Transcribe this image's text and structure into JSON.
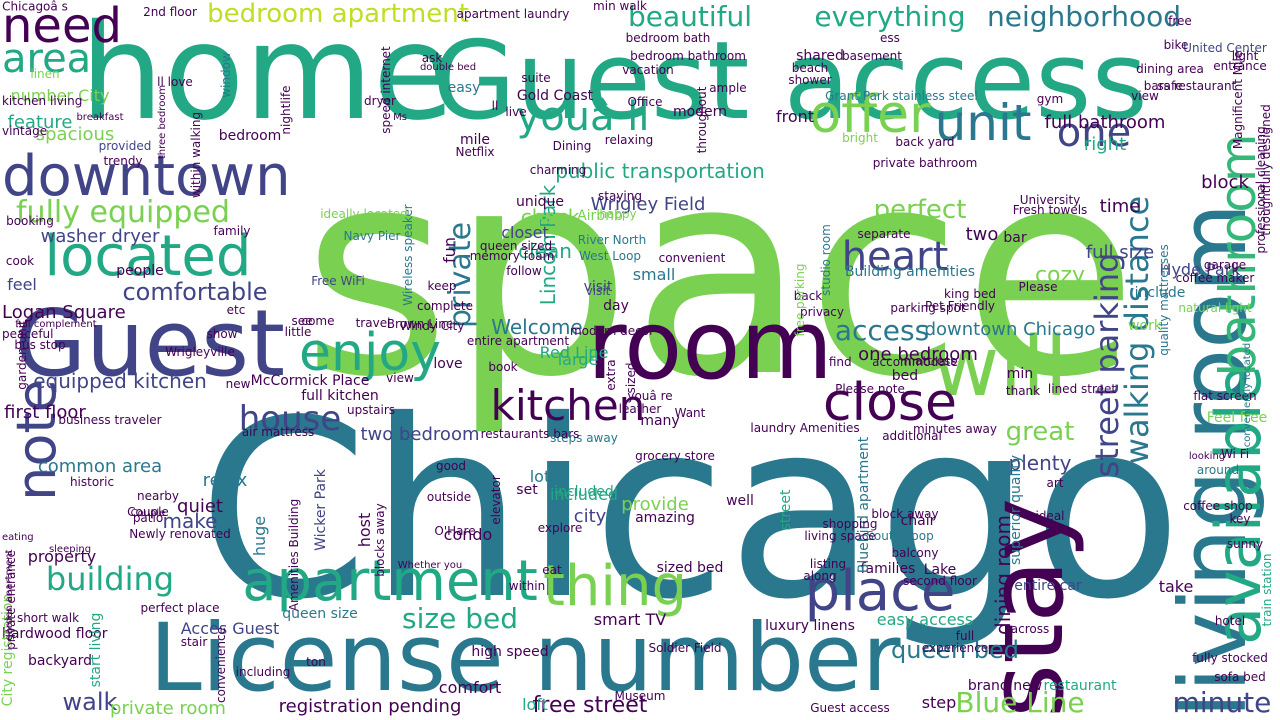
{
  "palette": {
    "background": "#ffffff",
    "lime": "#7ad151",
    "green": "#22a884",
    "teal": "#2a788e",
    "blue": "#414487",
    "purple": "#440154",
    "yellow": "#bddf26",
    "seafoam": "#35b779"
  },
  "words": [
    {
      "text": "space"
    },
    {
      "text": "Chicago"
    },
    {
      "text": "home"
    },
    {
      "text": "Guest access"
    },
    {
      "text": "License number"
    },
    {
      "text": "living room"
    },
    {
      "text": "room"
    },
    {
      "text": "stay"
    },
    {
      "text": "Guest"
    },
    {
      "text": "will"
    },
    {
      "text": "apartment"
    },
    {
      "text": "available"
    },
    {
      "text": "downtown"
    },
    {
      "text": "located"
    },
    {
      "text": "bathroom"
    },
    {
      "text": "note"
    },
    {
      "text": "thing"
    },
    {
      "text": "place"
    },
    {
      "text": "need"
    },
    {
      "text": "close"
    },
    {
      "text": "kitchen"
    },
    {
      "text": "enjoy"
    },
    {
      "text": "offer"
    },
    {
      "text": "youâ ll"
    },
    {
      "text": "unit"
    },
    {
      "text": "everything"
    },
    {
      "text": "neighborhood"
    },
    {
      "text": "beautiful"
    },
    {
      "text": "bedroom apartment"
    },
    {
      "text": "area"
    },
    {
      "text": "one"
    },
    {
      "text": "fully equipped"
    },
    {
      "text": "heart"
    },
    {
      "text": "walking distance"
    },
    {
      "text": "street parking"
    },
    {
      "text": "building"
    },
    {
      "text": "house"
    },
    {
      "text": "private"
    },
    {
      "text": "perfect"
    },
    {
      "text": "comfortable"
    },
    {
      "text": "equipped kitchen"
    },
    {
      "text": "size bed"
    },
    {
      "text": "walk"
    },
    {
      "text": "minute"
    },
    {
      "text": "Blue Line"
    },
    {
      "text": "great"
    },
    {
      "text": "access"
    },
    {
      "text": "free street"
    },
    {
      "text": "queen bed"
    },
    {
      "text": "private room"
    },
    {
      "text": "registration pending"
    },
    {
      "text": "dining room"
    },
    {
      "text": "Lincoln Park"
    },
    {
      "text": "Wrigley Field"
    },
    {
      "text": "Gold Coast"
    },
    {
      "text": "two bedroom"
    },
    {
      "text": "one bedroom"
    },
    {
      "text": "washer dryer"
    },
    {
      "text": "Logan Square"
    },
    {
      "text": "first floor"
    },
    {
      "text": "common area"
    },
    {
      "text": "spacious"
    },
    {
      "text": "feature"
    },
    {
      "text": "number City"
    },
    {
      "text": "public transportation"
    },
    {
      "text": "check"
    },
    {
      "text": "clean"
    },
    {
      "text": "closet"
    },
    {
      "text": "Welcome"
    },
    {
      "text": "downtown Chicago"
    },
    {
      "text": "full size"
    },
    {
      "text": "Hyde Park"
    },
    {
      "text": "full bathroom"
    },
    {
      "text": "bars restaurant"
    },
    {
      "text": "United Center"
    },
    {
      "text": "Wicker Park"
    },
    {
      "text": "McCormick Place"
    },
    {
      "text": "Navy Pier"
    },
    {
      "text": "Free WiFi"
    },
    {
      "text": "smart TV"
    },
    {
      "text": "hardwood floor"
    },
    {
      "text": "street"
    },
    {
      "text": "Red Line"
    },
    {
      "text": "Brown Line"
    },
    {
      "text": "steps away"
    },
    {
      "text": "South Loop"
    },
    {
      "text": "full kitchen"
    },
    {
      "text": "plenty"
    },
    {
      "text": "make"
    },
    {
      "text": "property"
    },
    {
      "text": "relax"
    },
    {
      "text": "quiet"
    },
    {
      "text": "city"
    },
    {
      "text": "included"
    },
    {
      "text": "cozy"
    },
    {
      "text": "time"
    },
    {
      "text": "block"
    },
    {
      "text": "two"
    },
    {
      "text": "right"
    },
    {
      "text": "people"
    },
    {
      "text": "feel"
    },
    {
      "text": "fun"
    },
    {
      "text": "small"
    },
    {
      "text": "visit"
    },
    {
      "text": "host"
    },
    {
      "text": "condo"
    },
    {
      "text": "lot"
    },
    {
      "text": "huge"
    },
    {
      "text": "bed"
    },
    {
      "text": "Airbnb"
    },
    {
      "text": "easy access"
    },
    {
      "text": "brand new"
    },
    {
      "text": "luxury linens"
    },
    {
      "text": "loft"
    },
    {
      "text": "comfort"
    },
    {
      "text": "second floor"
    },
    {
      "text": "entire car"
    },
    {
      "text": "take"
    },
    {
      "text": "Acces Guest"
    },
    {
      "text": "step"
    },
    {
      "text": "Guest access"
    },
    {
      "text": "backyard"
    },
    {
      "text": "start living"
    },
    {
      "text": "City registration"
    },
    {
      "text": "Lake"
    },
    {
      "text": "families"
    },
    {
      "text": "perfect place"
    },
    {
      "text": "short walk"
    },
    {
      "text": "queen size"
    },
    {
      "text": "high speed"
    },
    {
      "text": "Bluebird apartment"
    },
    {
      "text": "provide"
    },
    {
      "text": "included"
    },
    {
      "text": "amazing"
    },
    {
      "text": "sized bed"
    },
    {
      "text": "eat"
    },
    {
      "text": "within"
    },
    {
      "text": "set"
    },
    {
      "text": "O'Hare"
    },
    {
      "text": "well"
    },
    {
      "text": "many"
    },
    {
      "text": "view"
    },
    {
      "text": "new"
    },
    {
      "text": "unique"
    },
    {
      "text": "modern"
    },
    {
      "text": "front"
    },
    {
      "text": "shared"
    },
    {
      "text": "love"
    },
    {
      "text": "mile"
    },
    {
      "text": "Netflix"
    },
    {
      "text": "charming"
    },
    {
      "text": "relaxing"
    },
    {
      "text": "staying"
    },
    {
      "text": "happy"
    },
    {
      "text": "memory foam"
    },
    {
      "text": "follow"
    },
    {
      "text": "River North"
    },
    {
      "text": "West Loop"
    },
    {
      "text": "convenient"
    },
    {
      "text": "Building amenities"
    },
    {
      "text": "Pet Friendly"
    },
    {
      "text": "king bed"
    },
    {
      "text": "bar"
    },
    {
      "text": "separate"
    },
    {
      "text": "Please"
    },
    {
      "text": "include"
    },
    {
      "text": "coffee maker"
    },
    {
      "text": "work"
    },
    {
      "text": "natural light"
    },
    {
      "text": "Fresh towels"
    },
    {
      "text": "University"
    },
    {
      "text": "Grant Park"
    },
    {
      "text": "stainless steel"
    },
    {
      "text": "back yard"
    },
    {
      "text": "private bathroom"
    },
    {
      "text": "Wireless speaker"
    },
    {
      "text": "Chicagoâ s"
    },
    {
      "text": "2nd floor"
    },
    {
      "text": "min walk"
    },
    {
      "text": "live"
    },
    {
      "text": "bright"
    },
    {
      "text": "ideally located"
    },
    {
      "text": "Windy City"
    },
    {
      "text": "Wrigleyville"
    },
    {
      "text": "bus stop"
    },
    {
      "text": "etc"
    },
    {
      "text": "shower"
    },
    {
      "text": "easy"
    },
    {
      "text": "ll love"
    },
    {
      "text": "kitchen living"
    },
    {
      "text": "window"
    },
    {
      "text": "nightlife"
    },
    {
      "text": "three bedroom"
    },
    {
      "text": "provided"
    },
    {
      "text": "trendy"
    },
    {
      "text": "family"
    },
    {
      "text": "booking"
    },
    {
      "text": "cook"
    },
    {
      "text": "garden unit"
    },
    {
      "text": "Magnificent Mile"
    },
    {
      "text": "flat screen"
    },
    {
      "text": "Feel free"
    },
    {
      "text": "Wi Fi"
    },
    {
      "text": "around"
    },
    {
      "text": "looking"
    },
    {
      "text": "hotel"
    },
    {
      "text": "fully stocked"
    },
    {
      "text": "sofa bed"
    },
    {
      "text": "restaurant"
    },
    {
      "text": "experience"
    },
    {
      "text": "full"
    },
    {
      "text": "across"
    },
    {
      "text": "ideal"
    },
    {
      "text": "block away"
    },
    {
      "text": "art"
    },
    {
      "text": "chair"
    },
    {
      "text": "balcony"
    },
    {
      "text": "thank"
    },
    {
      "text": "min"
    },
    {
      "text": "accommodate"
    },
    {
      "text": "ll find"
    },
    {
      "text": "Please note"
    },
    {
      "text": "large"
    },
    {
      "text": "visit"
    },
    {
      "text": "back"
    },
    {
      "text": "privacy"
    },
    {
      "text": "parking spot"
    },
    {
      "text": "garage"
    },
    {
      "text": "Newly renovated"
    },
    {
      "text": "patio"
    },
    {
      "text": "minutes away"
    },
    {
      "text": "lined street"
    },
    {
      "text": "additional"
    },
    {
      "text": "shopping"
    },
    {
      "text": "living space"
    },
    {
      "text": "listing"
    },
    {
      "text": "along"
    },
    {
      "text": "free parking"
    },
    {
      "text": "studio room"
    },
    {
      "text": "Soldier Field"
    },
    {
      "text": "Museum"
    },
    {
      "text": "grocery store"
    },
    {
      "text": "laundry Amenities"
    },
    {
      "text": "restaurants bars"
    },
    {
      "text": "within walking"
    },
    {
      "text": "outside"
    },
    {
      "text": "historic"
    },
    {
      "text": "nearby"
    },
    {
      "text": "Couple"
    },
    {
      "text": "Amenities Building"
    },
    {
      "text": "air mattress"
    },
    {
      "text": "blocks away"
    },
    {
      "text": "Whether you"
    },
    {
      "text": "explore"
    },
    {
      "text": "good"
    },
    {
      "text": "elevator"
    },
    {
      "text": "entire apartment"
    },
    {
      "text": "modern decor"
    },
    {
      "text": "book"
    },
    {
      "text": "Want"
    },
    {
      "text": "youâ re"
    },
    {
      "text": "leather"
    },
    {
      "text": "convenience"
    },
    {
      "text": "stair"
    },
    {
      "text": "including"
    },
    {
      "text": "ton"
    },
    {
      "text": "see"
    },
    {
      "text": "upstairs"
    },
    {
      "text": "business traveler"
    },
    {
      "text": "full complement"
    },
    {
      "text": "peaceful"
    },
    {
      "text": "show"
    },
    {
      "text": "little"
    },
    {
      "text": "come"
    },
    {
      "text": "travel"
    },
    {
      "text": "keep"
    },
    {
      "text": "complete"
    },
    {
      "text": "day"
    },
    {
      "text": "extra"
    },
    {
      "text": "sized"
    },
    {
      "text": "queen sized"
    },
    {
      "text": "Dining"
    },
    {
      "text": "Office"
    },
    {
      "text": "suite"
    },
    {
      "text": "private entrance"
    },
    {
      "text": "ask"
    },
    {
      "text": "double bed"
    },
    {
      "text": "linen"
    },
    {
      "text": "breakfast"
    },
    {
      "text": "vintage"
    },
    {
      "text": "garden apartment"
    },
    {
      "text": "sleeping"
    },
    {
      "text": "eating"
    },
    {
      "text": "Couple"
    },
    {
      "text": "superior quality"
    },
    {
      "text": "mattress"
    },
    {
      "text": "quality mattresses"
    },
    {
      "text": "professional cleaning"
    },
    {
      "text": "conveniently located"
    },
    {
      "text": "thoughtfully designed"
    },
    {
      "text": "train station"
    },
    {
      "text": "coffee shop"
    },
    {
      "text": "sunny"
    },
    {
      "text": "key"
    },
    {
      "text": "safe"
    },
    {
      "text": "entrance"
    },
    {
      "text": "light"
    },
    {
      "text": "basement"
    },
    {
      "text": "beach"
    },
    {
      "text": "dryer"
    },
    {
      "text": "Ms"
    },
    {
      "text": "ll"
    },
    {
      "text": "ess"
    },
    {
      "text": "gym"
    },
    {
      "text": "dining area"
    },
    {
      "text": "vacation"
    },
    {
      "text": "throughout"
    },
    {
      "text": "speed internet"
    },
    {
      "text": "bedroom bathroom"
    },
    {
      "text": "free"
    },
    {
      "text": "bike"
    },
    {
      "text": "view"
    },
    {
      "text": "ample"
    },
    {
      "text": "bedroom"
    },
    {
      "text": "apartment laundry"
    },
    {
      "text": "bedroom bath"
    }
  ]
}
